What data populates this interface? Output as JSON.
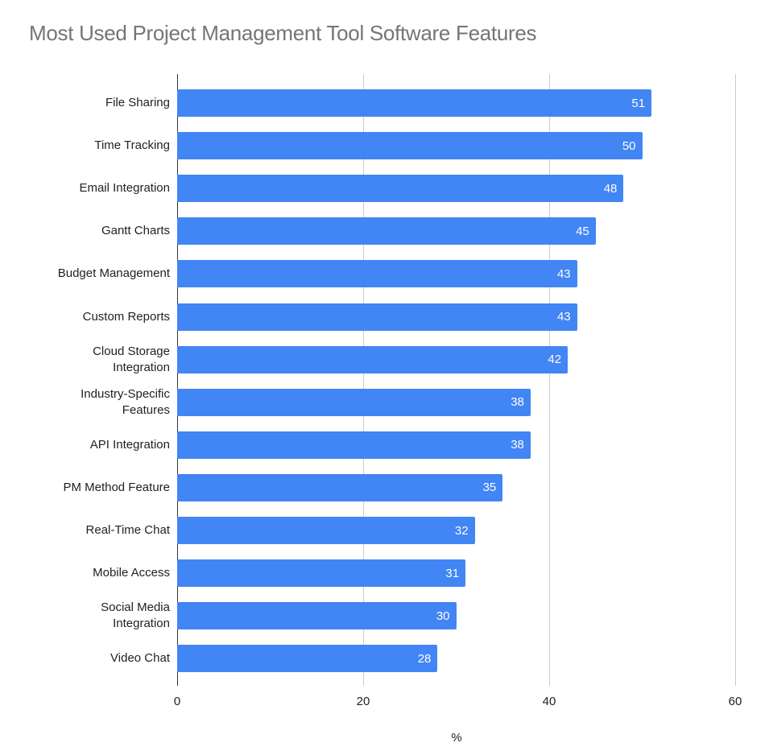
{
  "chart_data": {
    "type": "bar",
    "orientation": "horizontal",
    "title": "Most Used Project Management Tool Software Features",
    "xlabel": "%",
    "ylabel": "",
    "xlim": [
      0,
      60
    ],
    "x_ticks": [
      "0",
      "20",
      "40",
      "60"
    ],
    "grid": true,
    "legend": "none",
    "bar_color": "#4285F4",
    "categories": [
      "File Sharing",
      "Time Tracking",
      "Email Integration",
      "Gantt Charts",
      "Budget Management",
      "Custom Reports",
      "Cloud Storage Integration",
      "Industry-Specific Features",
      "API Integration",
      "PM Method Feature",
      "Real-Time Chat",
      "Mobile Access",
      "Social Media Integration",
      "Video Chat"
    ],
    "values": [
      51,
      50,
      48,
      45,
      43,
      43,
      42,
      38,
      38,
      35,
      32,
      31,
      30,
      28
    ],
    "data_labels": [
      "51",
      "50",
      "48",
      "45",
      "43",
      "43",
      "42",
      "38",
      "38",
      "35",
      "32",
      "31",
      "30",
      "28"
    ]
  }
}
